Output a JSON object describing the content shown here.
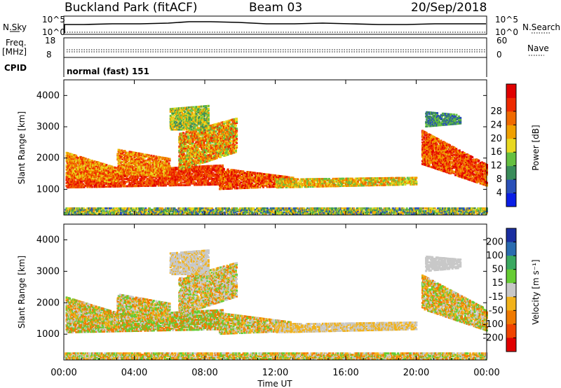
{
  "header": {
    "station": "Buckland Park (fitACF)",
    "beam": "Beam 03",
    "date": "20/Sep/2018"
  },
  "strips": {
    "nsky_label": "N.Sky",
    "nsky_ticks": [
      "10^5",
      "10^0"
    ],
    "nsky_right_ticks": [
      "10^5",
      "10^0"
    ],
    "nsearch_label": "N.Search",
    "freq_label": "Freq.",
    "freq_unit": "[MHz]",
    "freq_ticks": [
      "18",
      "8"
    ],
    "nave_label": "Nave",
    "nave_ticks": [
      "60",
      "0"
    ],
    "cpid_label": "CPID",
    "cpid_value": "normal (fast) 151"
  },
  "chart_data": [
    {
      "type": "heatmap",
      "name": "power",
      "ylabel": "Slant Range [km]",
      "yticks": [
        1000,
        2000,
        3000,
        4000
      ],
      "ylim": [
        180,
        4500
      ],
      "xlim_hours": [
        0,
        24
      ],
      "colorbar_label": "Power [dB]",
      "colorbar_ticks": [
        4,
        8,
        12,
        16,
        20,
        24,
        28
      ],
      "colorbar_colors": [
        "#0a1ee6",
        "#2a50b8",
        "#3a8c5a",
        "#66c040",
        "#e8d820",
        "#f0a000",
        "#f06a00",
        "#ee2a00",
        "#e00000"
      ],
      "accent": "#e52400"
    },
    {
      "type": "heatmap",
      "name": "velocity",
      "ylabel": "Slant Range [km]",
      "yticks": [
        1000,
        2000,
        3000,
        4000
      ],
      "ylim": [
        180,
        4500
      ],
      "xlim_hours": [
        0,
        24
      ],
      "colorbar_label": "Velocity [m s⁻¹]",
      "colorbar_ticks": [
        200,
        100,
        50,
        15,
        -15,
        -50,
        -100,
        -200
      ],
      "colorbar_colors": [
        "#1a2ea0",
        "#2a6cb0",
        "#3aa860",
        "#66cc33",
        "#c8c8c8",
        "#f2b21a",
        "#f07a00",
        "#f04400",
        "#e00000"
      ],
      "accent": "#c9c9c9"
    }
  ],
  "time_axis": {
    "ticks": [
      "00:00",
      "04:00",
      "08:00",
      "12:00",
      "16:00",
      "20:00",
      "00:00"
    ],
    "label": "Time UT"
  }
}
